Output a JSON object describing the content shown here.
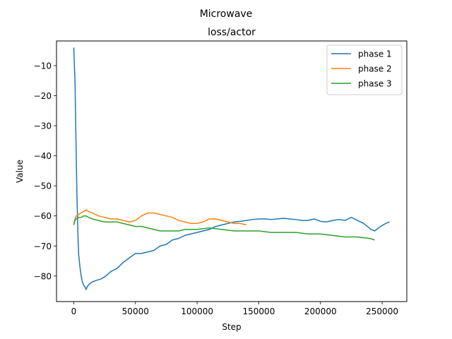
{
  "chart_data": {
    "type": "line",
    "suptitle": "Microwave",
    "title": "loss/actor",
    "xlabel": "Step",
    "ylabel": "Value",
    "xlim": [
      -14000,
      270000
    ],
    "ylim": [
      -88.5,
      -1.8
    ],
    "xticks": [
      0,
      50000,
      100000,
      150000,
      200000,
      250000
    ],
    "xtick_labels": [
      "0",
      "50000",
      "100000",
      "150000",
      "200000",
      "250000"
    ],
    "yticks": [
      -10,
      -20,
      -30,
      -40,
      -50,
      -60,
      -70,
      -80
    ],
    "ytick_labels": [
      "−10",
      "−20",
      "−30",
      "−40",
      "−50",
      "−60",
      "−70",
      "−80"
    ],
    "grid": false,
    "legend_position": "top-right",
    "series": [
      {
        "name": "phase 1",
        "color": "#1f77b4",
        "x": [
          0,
          500,
          1000,
          1500,
          2000,
          2500,
          3000,
          3500,
          4000,
          5000,
          6000,
          7000,
          8000,
          9000,
          10000,
          11000,
          13000,
          15000,
          18000,
          22000,
          26000,
          30000,
          35000,
          40000,
          45000,
          50000,
          55000,
          60000,
          65000,
          70000,
          75000,
          80000,
          85000,
          90000,
          95000,
          100000,
          105000,
          110000,
          115000,
          120000,
          125000,
          130000,
          135000,
          140000,
          145000,
          150000,
          155000,
          160000,
          165000,
          170000,
          175000,
          180000,
          185000,
          190000,
          195000,
          200000,
          205000,
          210000,
          215000,
          220000,
          225000,
          230000,
          235000,
          238000,
          241000,
          244000,
          247000,
          250000,
          253000,
          256000
        ],
        "y": [
          -4,
          -10,
          -15,
          -28,
          -40,
          -52,
          -60,
          -68,
          -73,
          -77,
          -80,
          -82,
          -83,
          -83.5,
          -84.5,
          -83.5,
          -82.5,
          -82,
          -81.5,
          -81,
          -80,
          -78.5,
          -77.5,
          -75.5,
          -74,
          -72.5,
          -72.5,
          -72,
          -71.5,
          -70,
          -69.5,
          -68,
          -67.5,
          -66.5,
          -66,
          -65.5,
          -65,
          -64.5,
          -63.5,
          -63,
          -62.5,
          -62,
          -61.8,
          -61.5,
          -61.2,
          -61,
          -61,
          -61.2,
          -61,
          -60.8,
          -61,
          -61.2,
          -61.5,
          -61.5,
          -61,
          -61.8,
          -62,
          -61.5,
          -61.2,
          -61.5,
          -60.5,
          -61.5,
          -62.5,
          -63.5,
          -64.5,
          -65,
          -64,
          -63.2,
          -62.5,
          -62
        ]
      },
      {
        "name": "phase 2",
        "color": "#ff7f0e",
        "x": [
          0,
          1000,
          2000,
          4000,
          6000,
          8000,
          10000,
          12000,
          15000,
          20000,
          25000,
          30000,
          35000,
          40000,
          45000,
          50000,
          55000,
          60000,
          65000,
          70000,
          75000,
          80000,
          85000,
          90000,
          95000,
          100000,
          105000,
          110000,
          115000,
          120000,
          125000,
          130000,
          135000,
          140000
        ],
        "y": [
          -63,
          -61,
          -60,
          -59.5,
          -59,
          -58.5,
          -58,
          -58.5,
          -59,
          -60,
          -60.5,
          -61,
          -61,
          -61.5,
          -62,
          -61.5,
          -60,
          -59,
          -59,
          -59.5,
          -60,
          -60.5,
          -61.5,
          -62,
          -62.5,
          -62.5,
          -62,
          -61,
          -61,
          -61.5,
          -62,
          -62.5,
          -62.5,
          -63
        ]
      },
      {
        "name": "phase 3",
        "color": "#2ca02c",
        "x": [
          0,
          1000,
          2000,
          4000,
          6000,
          8000,
          10000,
          12000,
          15000,
          20000,
          25000,
          30000,
          35000,
          40000,
          45000,
          50000,
          55000,
          60000,
          65000,
          70000,
          75000,
          80000,
          85000,
          90000,
          95000,
          100000,
          110000,
          120000,
          130000,
          140000,
          150000,
          160000,
          170000,
          180000,
          190000,
          200000,
          210000,
          220000,
          230000,
          240000,
          244000
        ],
        "y": [
          -63,
          -61.5,
          -61,
          -60.5,
          -60.5,
          -60,
          -60,
          -60.5,
          -61,
          -61.5,
          -62,
          -62,
          -62,
          -62.5,
          -63,
          -63.5,
          -63.5,
          -64,
          -64.5,
          -65,
          -65,
          -65,
          -65,
          -64.5,
          -64.5,
          -64.5,
          -64,
          -64.5,
          -65,
          -65,
          -65,
          -65.5,
          -65.5,
          -65.5,
          -66,
          -66,
          -66.5,
          -67,
          -67,
          -67.5,
          -68
        ]
      }
    ]
  }
}
